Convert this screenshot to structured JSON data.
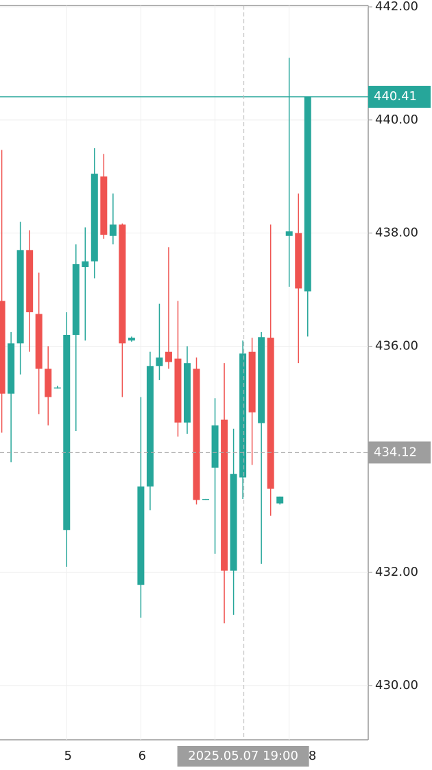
{
  "chart_data": {
    "type": "candlestick",
    "categories": [
      null,
      null,
      null,
      null,
      null,
      null,
      null,
      "5",
      null,
      null,
      null,
      null,
      null,
      null,
      null,
      "6",
      null,
      null,
      null,
      null,
      null,
      null,
      null,
      null,
      null,
      null,
      null,
      null,
      null,
      null,
      null,
      "8",
      null,
      null
    ],
    "open": [
      436.8,
      435.16,
      436.05,
      437.7,
      436.57,
      435.6,
      435.27,
      432.75,
      436.2,
      437.4,
      437.5,
      439.0,
      437.95,
      438.15,
      436.1,
      431.78,
      433.52,
      435.65,
      435.9,
      435.78,
      434.65,
      435.6,
      433.3,
      433.85,
      434.7,
      432.03,
      433.68,
      435.9,
      434.64,
      436.15,
      433.22,
      437.95,
      438.0,
      436.97
    ],
    "high": [
      439.47,
      436.25,
      438.2,
      438.05,
      437.3,
      436.0,
      435.3,
      436.6,
      437.8,
      438.1,
      439.5,
      439.4,
      438.7,
      438.17,
      436.17,
      435.1,
      435.9,
      436.75,
      437.75,
      436.8,
      436.0,
      435.8,
      433.3,
      435.08,
      435.7,
      434.54,
      436.1,
      436.15,
      436.25,
      438.15,
      433.34,
      441.1,
      438.7,
      440.41
    ],
    "low": [
      434.47,
      433.95,
      435.5,
      435.9,
      434.8,
      434.6,
      435.25,
      432.1,
      434.5,
      436.1,
      437.2,
      437.9,
      437.8,
      435.1,
      436.08,
      431.2,
      433.1,
      435.4,
      435.6,
      434.4,
      434.45,
      433.2,
      433.28,
      432.33,
      431.1,
      431.25,
      433.3,
      433.9,
      432.15,
      433.0,
      433.2,
      437.05,
      435.7,
      436.17
    ],
    "close": [
      435.16,
      436.05,
      437.7,
      436.6,
      435.6,
      435.1,
      435.27,
      436.2,
      437.45,
      437.5,
      439.05,
      437.97,
      438.15,
      436.05,
      436.15,
      433.52,
      435.65,
      435.8,
      435.72,
      434.65,
      435.7,
      433.28,
      433.3,
      434.6,
      432.03,
      433.74,
      435.87,
      434.83,
      436.16,
      433.48,
      433.34,
      438.03,
      437.02,
      440.41
    ],
    "up_color": "#26a69a",
    "down_color": "#ef5350",
    "ylim": [
      429.04,
      442.0
    ],
    "yticks": [
      {
        "value": 430,
        "label": "430.00"
      },
      {
        "value": 432,
        "label": "432.00"
      },
      {
        "value": 436,
        "label": "436.00"
      },
      {
        "value": 438,
        "label": "438.00"
      },
      {
        "value": 440,
        "label": "440.00"
      },
      {
        "value": 442,
        "label": "442.00"
      }
    ],
    "grid": true,
    "last_price": 440.41,
    "crosshair": {
      "price": 434.12,
      "time_label": "2025.05.07 19:00",
      "index": 26
    }
  }
}
